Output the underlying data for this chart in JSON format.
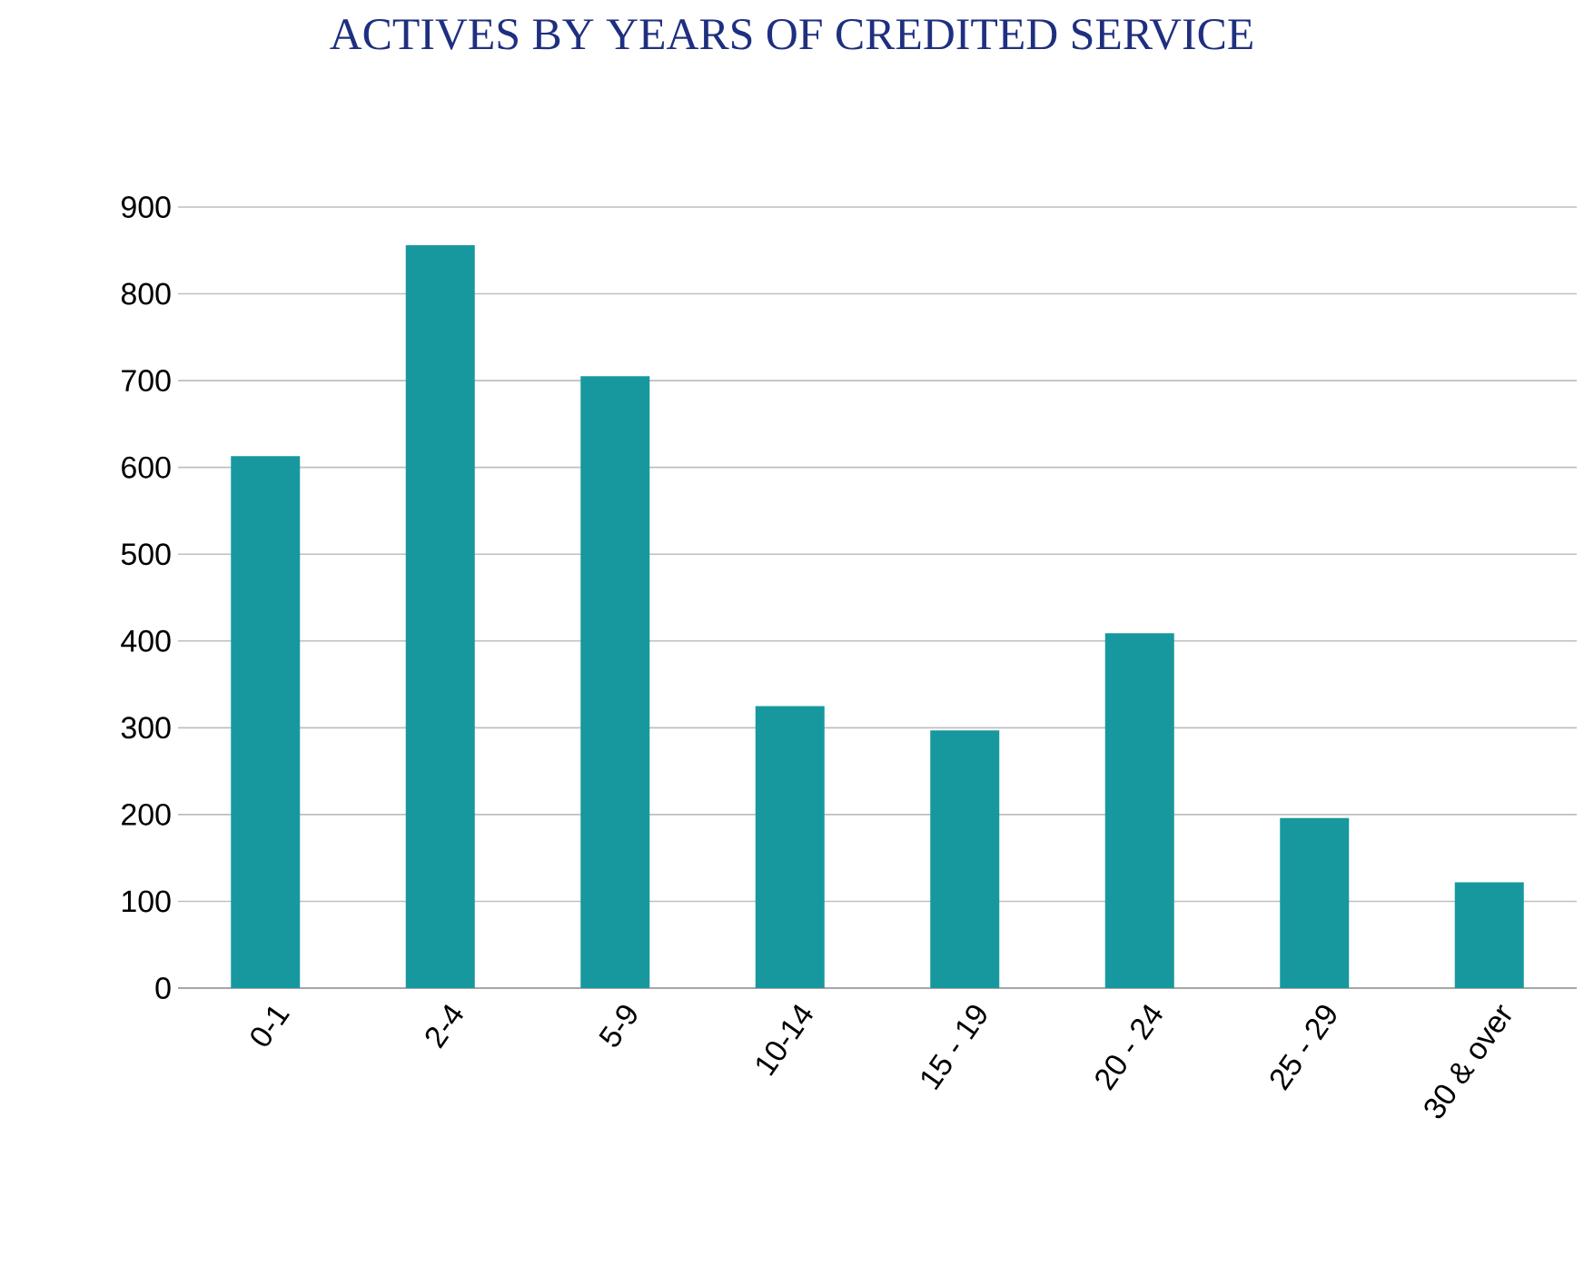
{
  "chart_data": {
    "type": "bar",
    "title": "ACTIVES BY YEARS OF CREDITED SERVICE",
    "categories": [
      "0-1",
      "2-4",
      "5-9",
      "10-14",
      "15 - 19",
      "20 - 24",
      "25 - 29",
      "30 & over"
    ],
    "values": [
      613,
      856,
      705,
      325,
      297,
      409,
      196,
      122
    ],
    "color": "#17989e",
    "ylim": [
      0,
      900
    ],
    "yticks": [
      0,
      100,
      200,
      300,
      400,
      500,
      600,
      700,
      800,
      900
    ],
    "grid": "y"
  }
}
